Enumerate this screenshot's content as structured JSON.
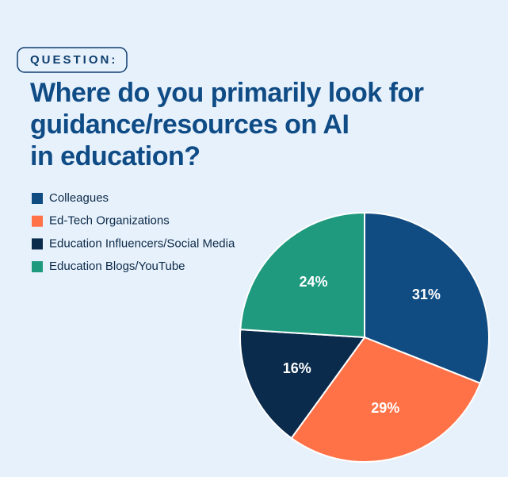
{
  "chart_data": {
    "type": "pie",
    "label": "QUESTION:",
    "title": [
      "Where do you primarily look for",
      "guidance/resources on AI",
      "in education?"
    ],
    "categories": [
      "Colleagues",
      "Ed-Tech Organizations",
      "Education Influencers/Social Media",
      "Education Blogs/YouTube"
    ],
    "values": [
      31,
      29,
      16,
      24
    ],
    "value_labels": [
      "31%",
      "29%",
      "16%",
      "24%"
    ],
    "colors": [
      "#104c82",
      "#ff7147",
      "#0b2b4c",
      "#1f9a7f"
    ],
    "legend": "top-left"
  }
}
